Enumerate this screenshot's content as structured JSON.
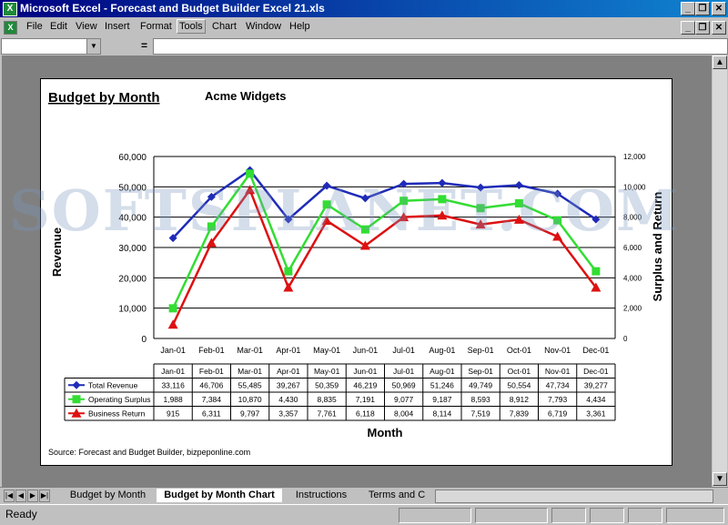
{
  "window": {
    "app_icon": "excel-icon",
    "title": "Microsoft Excel - Forecast and Budget Builder Excel 21.xls"
  },
  "menu": {
    "items": [
      "File",
      "Edit",
      "View",
      "Insert",
      "Format",
      "Tools",
      "Chart",
      "Window",
      "Help"
    ],
    "active": "Tools"
  },
  "formula_bar": {
    "name_box": "",
    "equals": "=",
    "value": ""
  },
  "sheet_tabs": {
    "tabs": [
      "Budget by Month",
      "Budget by Month Chart",
      "Instructions",
      "Terms and C"
    ],
    "active": "Budget by Month Chart"
  },
  "status": {
    "text": "Ready"
  },
  "watermark": "SOFTSPLANET.COM",
  "chart_data": {
    "type": "line",
    "title": "Budget by Month",
    "subtitle": "Acme Widgets",
    "xlabel": "Month",
    "ylabel": "Revenue",
    "y2label": "Surplus and Return",
    "source": "Source: Forecast and Budget Builder, bizpeponline.com",
    "categories": [
      "Jan-01",
      "Feb-01",
      "Mar-01",
      "Apr-01",
      "May-01",
      "Jun-01",
      "Jul-01",
      "Aug-01",
      "Sep-01",
      "Oct-01",
      "Nov-01",
      "Dec-01"
    ],
    "ylim": [
      0,
      60000
    ],
    "y2lim": [
      0,
      12000
    ],
    "y_ticks": [
      "0",
      "10,000",
      "20,000",
      "30,000",
      "40,000",
      "50,000",
      "60,000"
    ],
    "y2_ticks": [
      "0",
      "2,000",
      "4,000",
      "6,000",
      "8,000",
      "10,000",
      "12,000"
    ],
    "grid": true,
    "legend": "data-table",
    "series": [
      {
        "name": "Total Revenue",
        "axis": "left",
        "color": "#1f2bb8",
        "marker": "diamond",
        "values": [
          33116,
          46706,
          55485,
          39267,
          50359,
          46219,
          50969,
          51246,
          49749,
          50554,
          47734,
          39277
        ],
        "labels": [
          "33,116",
          "46,706",
          "55,485",
          "39,267",
          "50,359",
          "46,219",
          "50,969",
          "51,246",
          "49,749",
          "50,554",
          "47,734",
          "39,277"
        ]
      },
      {
        "name": "Operating Surplus",
        "axis": "right",
        "color": "#33dd33",
        "marker": "square",
        "values": [
          1988,
          7384,
          10870,
          4430,
          8835,
          7191,
          9077,
          9187,
          8593,
          8912,
          7793,
          4434
        ],
        "labels": [
          "1,988",
          "7,384",
          "10,870",
          "4,430",
          "8,835",
          "7,191",
          "9,077",
          "9,187",
          "8,593",
          "8,912",
          "7,793",
          "4,434"
        ]
      },
      {
        "name": "Business Return",
        "axis": "right",
        "color": "#dd1111",
        "marker": "triangle",
        "values": [
          915,
          6311,
          9797,
          3357,
          7761,
          6118,
          8004,
          8114,
          7519,
          7839,
          6719,
          3361
        ],
        "labels": [
          "915",
          "6,311",
          "9,797",
          "3,357",
          "7,761",
          "6,118",
          "8,004",
          "8,114",
          "7,519",
          "7,839",
          "6,719",
          "3,361"
        ]
      }
    ]
  }
}
